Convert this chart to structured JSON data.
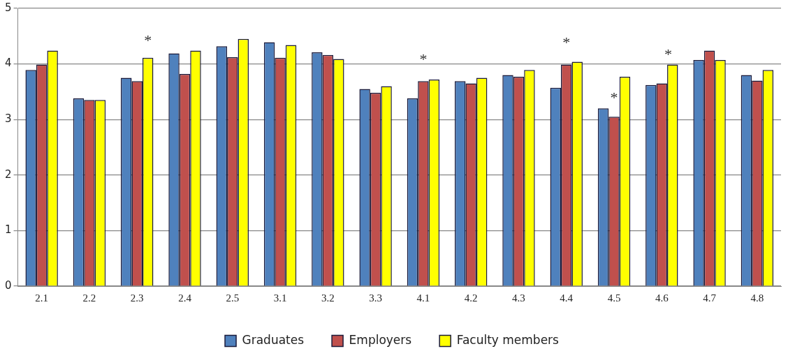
{
  "chart_data": {
    "type": "bar",
    "categories": [
      "2.1",
      "2.2",
      "2.3",
      "2.4",
      "2.5",
      "3.1",
      "3.2",
      "3.3",
      "4.1",
      "4.2",
      "4.3",
      "4.4",
      "4.5",
      "4.6",
      "4.7",
      "4.8"
    ],
    "series": [
      {
        "name": "Graduates",
        "color": "#4f81bd",
        "values": [
          3.89,
          3.38,
          3.75,
          4.19,
          4.32,
          4.39,
          4.21,
          3.55,
          3.38,
          3.69,
          3.8,
          3.57,
          3.2,
          3.62,
          4.07,
          3.8
        ]
      },
      {
        "name": "Employers",
        "color": "#c0504d",
        "values": [
          3.99,
          3.35,
          3.69,
          3.82,
          4.12,
          4.11,
          4.16,
          3.48,
          3.69,
          3.65,
          3.77,
          3.99,
          3.05,
          3.65,
          4.24,
          3.7
        ]
      },
      {
        "name": "Faculty members",
        "color": "#ffff00",
        "values": [
          4.24,
          3.35,
          4.11,
          4.24,
          4.45,
          4.34,
          4.09,
          3.6,
          3.72,
          3.75,
          3.89,
          4.04,
          3.77,
          3.99,
          4.07,
          3.89
        ]
      }
    ],
    "ylim": [
      0,
      5
    ],
    "yticks": [
      0,
      1,
      2,
      3,
      4,
      5
    ],
    "grid": "y",
    "legend": "bottom",
    "annotations": [
      "*",
      "*",
      "*",
      "*",
      "*"
    ]
  }
}
